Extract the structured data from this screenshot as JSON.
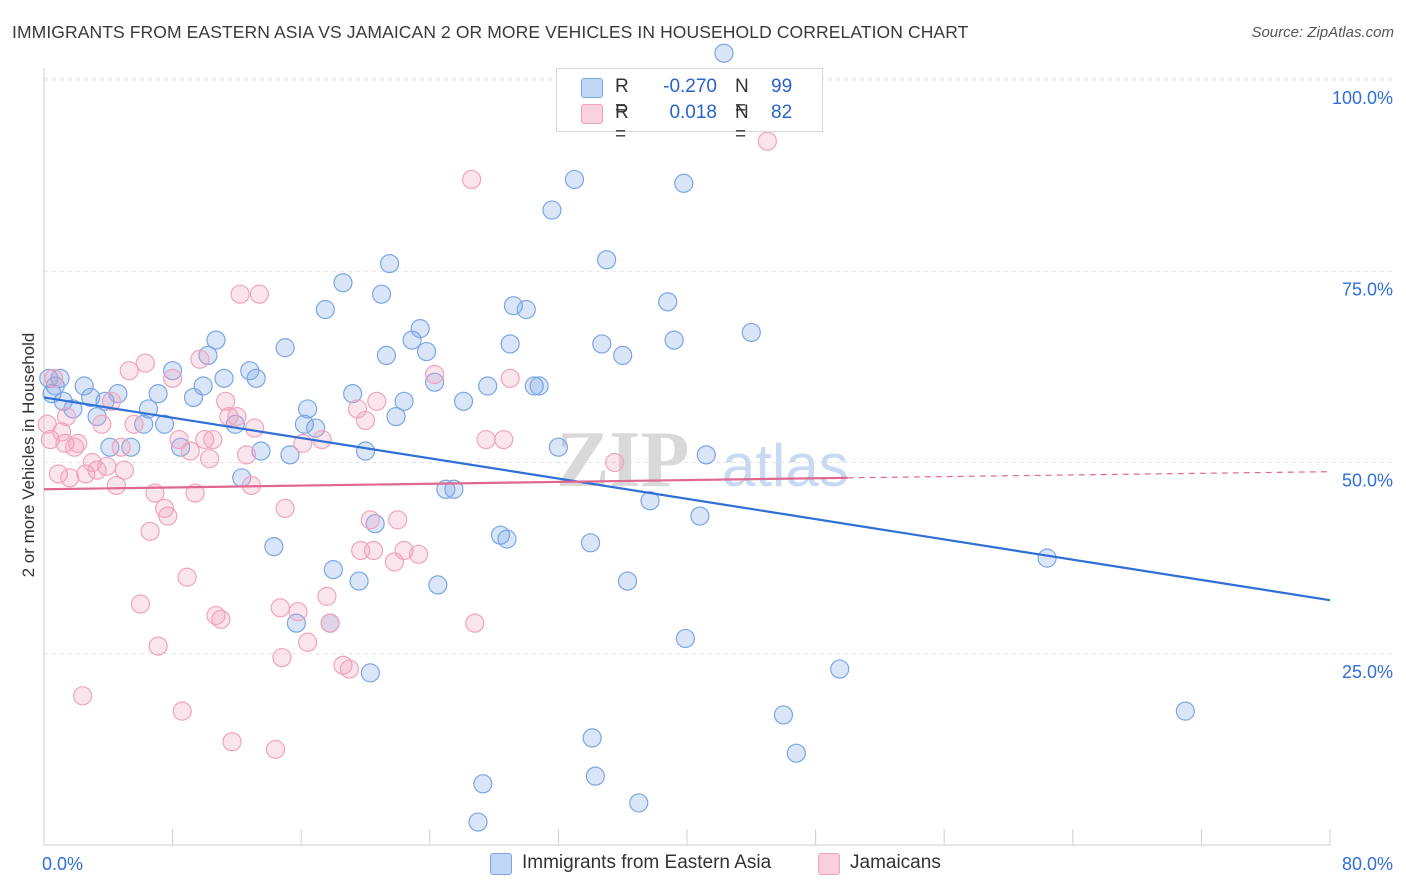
{
  "title": "IMMIGRANTS FROM EASTERN ASIA VS JAMAICAN 2 OR MORE VEHICLES IN HOUSEHOLD CORRELATION CHART",
  "source": "Source: ZipAtlas.com",
  "watermark": {
    "zip": "ZIP",
    "atlas": "atlas"
  },
  "legend": {
    "rows": [
      {
        "r_label": "R =",
        "r_value": "-0.270",
        "n_label": "N =",
        "n_value": "99",
        "color": "#a9c6f0"
      },
      {
        "r_label": "R =",
        "r_value": "0.018",
        "n_label": "N =",
        "n_value": "82",
        "color": "#f5b9cb"
      }
    ]
  },
  "bottom_legend": [
    {
      "label": "Immigrants from Eastern Asia",
      "color": "#a9c6f0"
    },
    {
      "label": "Jamaicans",
      "color": "#f5b9cb"
    }
  ],
  "chart_data": {
    "type": "scatter",
    "title": "IMMIGRANTS FROM EASTERN ASIA VS JAMAICAN 2 OR MORE VEHICLES IN HOUSEHOLD CORRELATION CHART",
    "xlabel": "",
    "ylabel": "2 or more Vehicles in Household",
    "xlim": [
      0,
      80
    ],
    "ylim": [
      0,
      100
    ],
    "x_tick_labels": [
      "0.0%",
      "80.0%"
    ],
    "y_tick_labels": [
      "25.0%",
      "50.0%",
      "75.0%",
      "100.0%"
    ],
    "y_ticks": [
      25,
      50,
      75,
      100
    ],
    "grid": true,
    "legend_position": "top-center",
    "series": [
      {
        "name": "Immigrants from Eastern Asia",
        "color": "#7aa6e6",
        "line_color": "#2f6fd6",
        "r": -0.27,
        "n": 99,
        "trend": {
          "x": [
            0,
            80
          ],
          "y": [
            58.5,
            32.0
          ]
        },
        "points": [
          [
            0.3,
            61.0
          ],
          [
            0.5,
            59.0
          ],
          [
            0.7,
            60.0
          ],
          [
            1.0,
            61.0
          ],
          [
            1.2,
            58.0
          ],
          [
            1.8,
            57.0
          ],
          [
            2.5,
            60.0
          ],
          [
            2.9,
            58.5
          ],
          [
            3.3,
            56.0
          ],
          [
            3.8,
            58.0
          ],
          [
            4.1,
            52.0
          ],
          [
            4.6,
            59.0
          ],
          [
            5.4,
            52.0
          ],
          [
            6.2,
            55.0
          ],
          [
            6.5,
            57.0
          ],
          [
            7.1,
            59.0
          ],
          [
            7.5,
            55.0
          ],
          [
            8.0,
            62.0
          ],
          [
            8.5,
            52.0
          ],
          [
            9.3,
            58.5
          ],
          [
            9.9,
            60.0
          ],
          [
            10.2,
            64.0
          ],
          [
            10.7,
            66.0
          ],
          [
            11.2,
            61.0
          ],
          [
            11.9,
            55.0
          ],
          [
            12.3,
            48.0
          ],
          [
            12.8,
            62.0
          ],
          [
            13.2,
            61.0
          ],
          [
            13.5,
            51.5
          ],
          [
            14.3,
            39.0
          ],
          [
            15.0,
            65.0
          ],
          [
            15.3,
            51.0
          ],
          [
            15.7,
            29.0
          ],
          [
            16.2,
            55.0
          ],
          [
            16.4,
            57.0
          ],
          [
            16.9,
            54.5
          ],
          [
            17.5,
            70.0
          ],
          [
            17.8,
            29.0
          ],
          [
            18.0,
            36.0
          ],
          [
            18.6,
            73.5
          ],
          [
            19.2,
            59.0
          ],
          [
            19.6,
            34.5
          ],
          [
            20.0,
            51.5
          ],
          [
            20.3,
            22.5
          ],
          [
            20.6,
            42.0
          ],
          [
            21.0,
            72.0
          ],
          [
            21.3,
            64.0
          ],
          [
            21.5,
            76.0
          ],
          [
            21.9,
            56.0
          ],
          [
            22.4,
            58.0
          ],
          [
            22.9,
            66.0
          ],
          [
            23.4,
            67.5
          ],
          [
            23.8,
            64.5
          ],
          [
            24.3,
            60.5
          ],
          [
            24.5,
            34.0
          ],
          [
            25.0,
            46.5
          ],
          [
            25.5,
            46.5
          ],
          [
            26.1,
            58.0
          ],
          [
            27.0,
            3.0
          ],
          [
            27.3,
            8.0
          ],
          [
            27.6,
            60.0
          ],
          [
            28.4,
            40.5
          ],
          [
            28.8,
            40.0
          ],
          [
            29.0,
            65.5
          ],
          [
            29.2,
            70.5
          ],
          [
            30.0,
            70.0
          ],
          [
            30.5,
            60.0
          ],
          [
            30.8,
            60.0
          ],
          [
            31.6,
            83.0
          ],
          [
            32.0,
            52.0
          ],
          [
            33.0,
            87.0
          ],
          [
            34.0,
            39.5
          ],
          [
            34.1,
            14.0
          ],
          [
            34.3,
            9.0
          ],
          [
            34.7,
            65.5
          ],
          [
            35.0,
            76.5
          ],
          [
            36.0,
            64.0
          ],
          [
            36.3,
            34.5
          ],
          [
            37.0,
            5.5
          ],
          [
            37.7,
            45.0
          ],
          [
            38.8,
            71.0
          ],
          [
            39.2,
            66.0
          ],
          [
            39.8,
            86.5
          ],
          [
            39.9,
            27.0
          ],
          [
            40.8,
            43.0
          ],
          [
            41.2,
            51.0
          ],
          [
            42.3,
            103.5
          ],
          [
            44.0,
            67.0
          ],
          [
            46.0,
            17.0
          ],
          [
            46.8,
            12.0
          ],
          [
            49.5,
            23.0
          ],
          [
            62.4,
            37.5
          ],
          [
            71.0,
            17.5
          ]
        ]
      },
      {
        "name": "Jamaicans",
        "color": "#f1a3bc",
        "line_color": "#e0688f",
        "r": 0.018,
        "n": 82,
        "trend": {
          "x": [
            0,
            50
          ],
          "y": [
            46.5,
            48.0
          ]
        },
        "trend_dashed": {
          "x": [
            50,
            80
          ],
          "y": [
            48.0,
            48.8
          ]
        },
        "points": [
          [
            0.2,
            55.0
          ],
          [
            0.4,
            53.0
          ],
          [
            0.6,
            61.0
          ],
          [
            0.9,
            48.5
          ],
          [
            1.1,
            54.0
          ],
          [
            1.3,
            52.5
          ],
          [
            1.4,
            56.0
          ],
          [
            1.6,
            48.0
          ],
          [
            1.9,
            52.0
          ],
          [
            2.1,
            52.5
          ],
          [
            2.4,
            19.5
          ],
          [
            2.6,
            48.5
          ],
          [
            3.0,
            50.0
          ],
          [
            3.3,
            49.0
          ],
          [
            3.6,
            55.0
          ],
          [
            3.9,
            49.5
          ],
          [
            4.2,
            58.0
          ],
          [
            4.5,
            47.0
          ],
          [
            4.8,
            52.0
          ],
          [
            5.0,
            49.0
          ],
          [
            5.3,
            62.0
          ],
          [
            5.6,
            55.0
          ],
          [
            6.0,
            31.5
          ],
          [
            6.3,
            63.0
          ],
          [
            6.6,
            41.0
          ],
          [
            6.9,
            46.0
          ],
          [
            7.1,
            26.0
          ],
          [
            7.5,
            44.0
          ],
          [
            7.7,
            43.0
          ],
          [
            8.0,
            61.0
          ],
          [
            8.4,
            53.0
          ],
          [
            8.6,
            17.5
          ],
          [
            8.9,
            35.0
          ],
          [
            9.1,
            51.5
          ],
          [
            9.4,
            46.0
          ],
          [
            9.7,
            63.5
          ],
          [
            10.0,
            53.0
          ],
          [
            10.3,
            50.5
          ],
          [
            10.5,
            53.0
          ],
          [
            10.7,
            30.0
          ],
          [
            11.0,
            29.5
          ],
          [
            11.3,
            58.0
          ],
          [
            11.5,
            56.0
          ],
          [
            11.7,
            13.5
          ],
          [
            12.0,
            56.0
          ],
          [
            12.2,
            72.0
          ],
          [
            12.6,
            51.0
          ],
          [
            12.9,
            47.0
          ],
          [
            13.1,
            54.5
          ],
          [
            13.4,
            72.0
          ],
          [
            14.4,
            12.5
          ],
          [
            14.7,
            31.0
          ],
          [
            14.8,
            24.5
          ],
          [
            15.0,
            44.0
          ],
          [
            15.8,
            30.5
          ],
          [
            16.1,
            52.5
          ],
          [
            16.4,
            26.5
          ],
          [
            17.3,
            53.0
          ],
          [
            17.6,
            32.5
          ],
          [
            17.8,
            29.0
          ],
          [
            18.6,
            23.5
          ],
          [
            19.0,
            23.0
          ],
          [
            19.5,
            57.0
          ],
          [
            19.7,
            38.5
          ],
          [
            20.0,
            55.5
          ],
          [
            20.3,
            42.5
          ],
          [
            20.5,
            38.5
          ],
          [
            20.7,
            58.0
          ],
          [
            21.8,
            37.0
          ],
          [
            22.0,
            42.5
          ],
          [
            22.4,
            38.5
          ],
          [
            23.3,
            38.0
          ],
          [
            24.3,
            61.5
          ],
          [
            26.6,
            87.0
          ],
          [
            26.8,
            29.0
          ],
          [
            27.5,
            53.0
          ],
          [
            28.6,
            53.0
          ],
          [
            29.0,
            61.0
          ],
          [
            35.5,
            50.0
          ],
          [
            45.0,
            92.0
          ]
        ]
      }
    ]
  }
}
